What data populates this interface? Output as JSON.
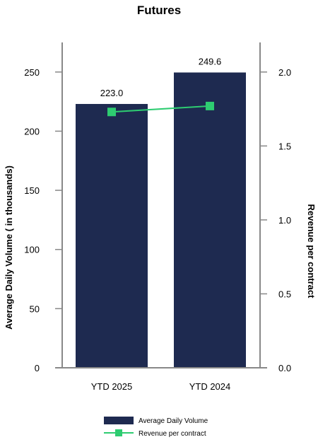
{
  "chart_data": {
    "type": "bar",
    "title": "Futures",
    "categories": [
      "YTD 2025",
      "YTD 2024"
    ],
    "series": [
      {
        "name": "Average Daily Volume",
        "type": "bar",
        "axis": "left",
        "values": [
          223.0,
          249.6
        ],
        "data_labels": [
          "223.0",
          "249.6"
        ],
        "color": "#1e2a50"
      },
      {
        "name": "Revenue per contract",
        "type": "line",
        "axis": "right",
        "values": [
          1.73,
          1.77
        ],
        "color": "#2ecc71"
      }
    ],
    "ylabel_left": "Average Daily Volume ( in thousands)",
    "ylabel_right": "Revenue per contract",
    "ylim_left": [
      0,
      275
    ],
    "yticks_left": [
      "0",
      "50",
      "100",
      "150",
      "200",
      "250"
    ],
    "ylim_right": [
      0,
      2.2
    ],
    "yticks_right": [
      "0.0",
      "0.5",
      "1.0",
      "1.5",
      "2.0"
    ],
    "grid": false,
    "legend_position": "bottom-center"
  }
}
